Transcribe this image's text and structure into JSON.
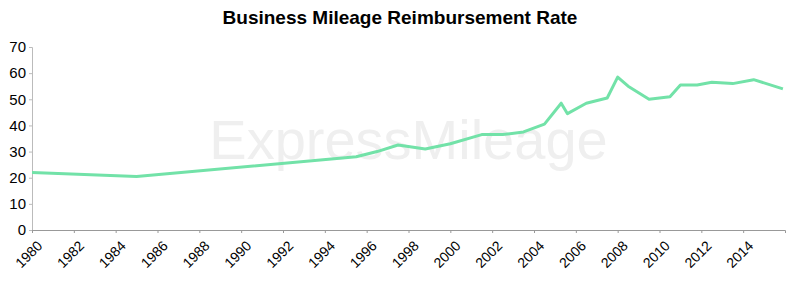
{
  "chart_data": {
    "type": "line",
    "title": "Business Mileage Reimbursement Rate",
    "annotations": [
      "ExpressMileage"
    ],
    "x": [
      1980,
      1985,
      1995.5,
      1996.5,
      1997.5,
      1998.8,
      2000,
      2001.5,
      2002.5,
      2003.5,
      2004.5,
      2005.3,
      2005.6,
      2006.5,
      2007.5,
      2008,
      2008.5,
      2009.5,
      2010.5,
      2011,
      2011.8,
      2012.5,
      2013.5,
      2014.5,
      2015.9
    ],
    "values": [
      22,
      20.5,
      28,
      30,
      32.5,
      31,
      33,
      36.5,
      36.5,
      37.5,
      40.5,
      48.5,
      44.5,
      48.5,
      50.5,
      58.5,
      55,
      50,
      51,
      55.5,
      55.5,
      56.5,
      56,
      57.5,
      54
    ],
    "color": "#72e2a8",
    "xlim": [
      1980,
      2016
    ],
    "xticks": [
      1980,
      1982,
      1984,
      1986,
      1988,
      1990,
      1992,
      1994,
      1996,
      1998,
      2000,
      2002,
      2004,
      2006,
      2008,
      2010,
      2012,
      2014
    ],
    "ylim": [
      0,
      70
    ],
    "yticks": [
      0,
      10,
      20,
      30,
      40,
      50,
      60,
      70
    ],
    "grid": false
  }
}
